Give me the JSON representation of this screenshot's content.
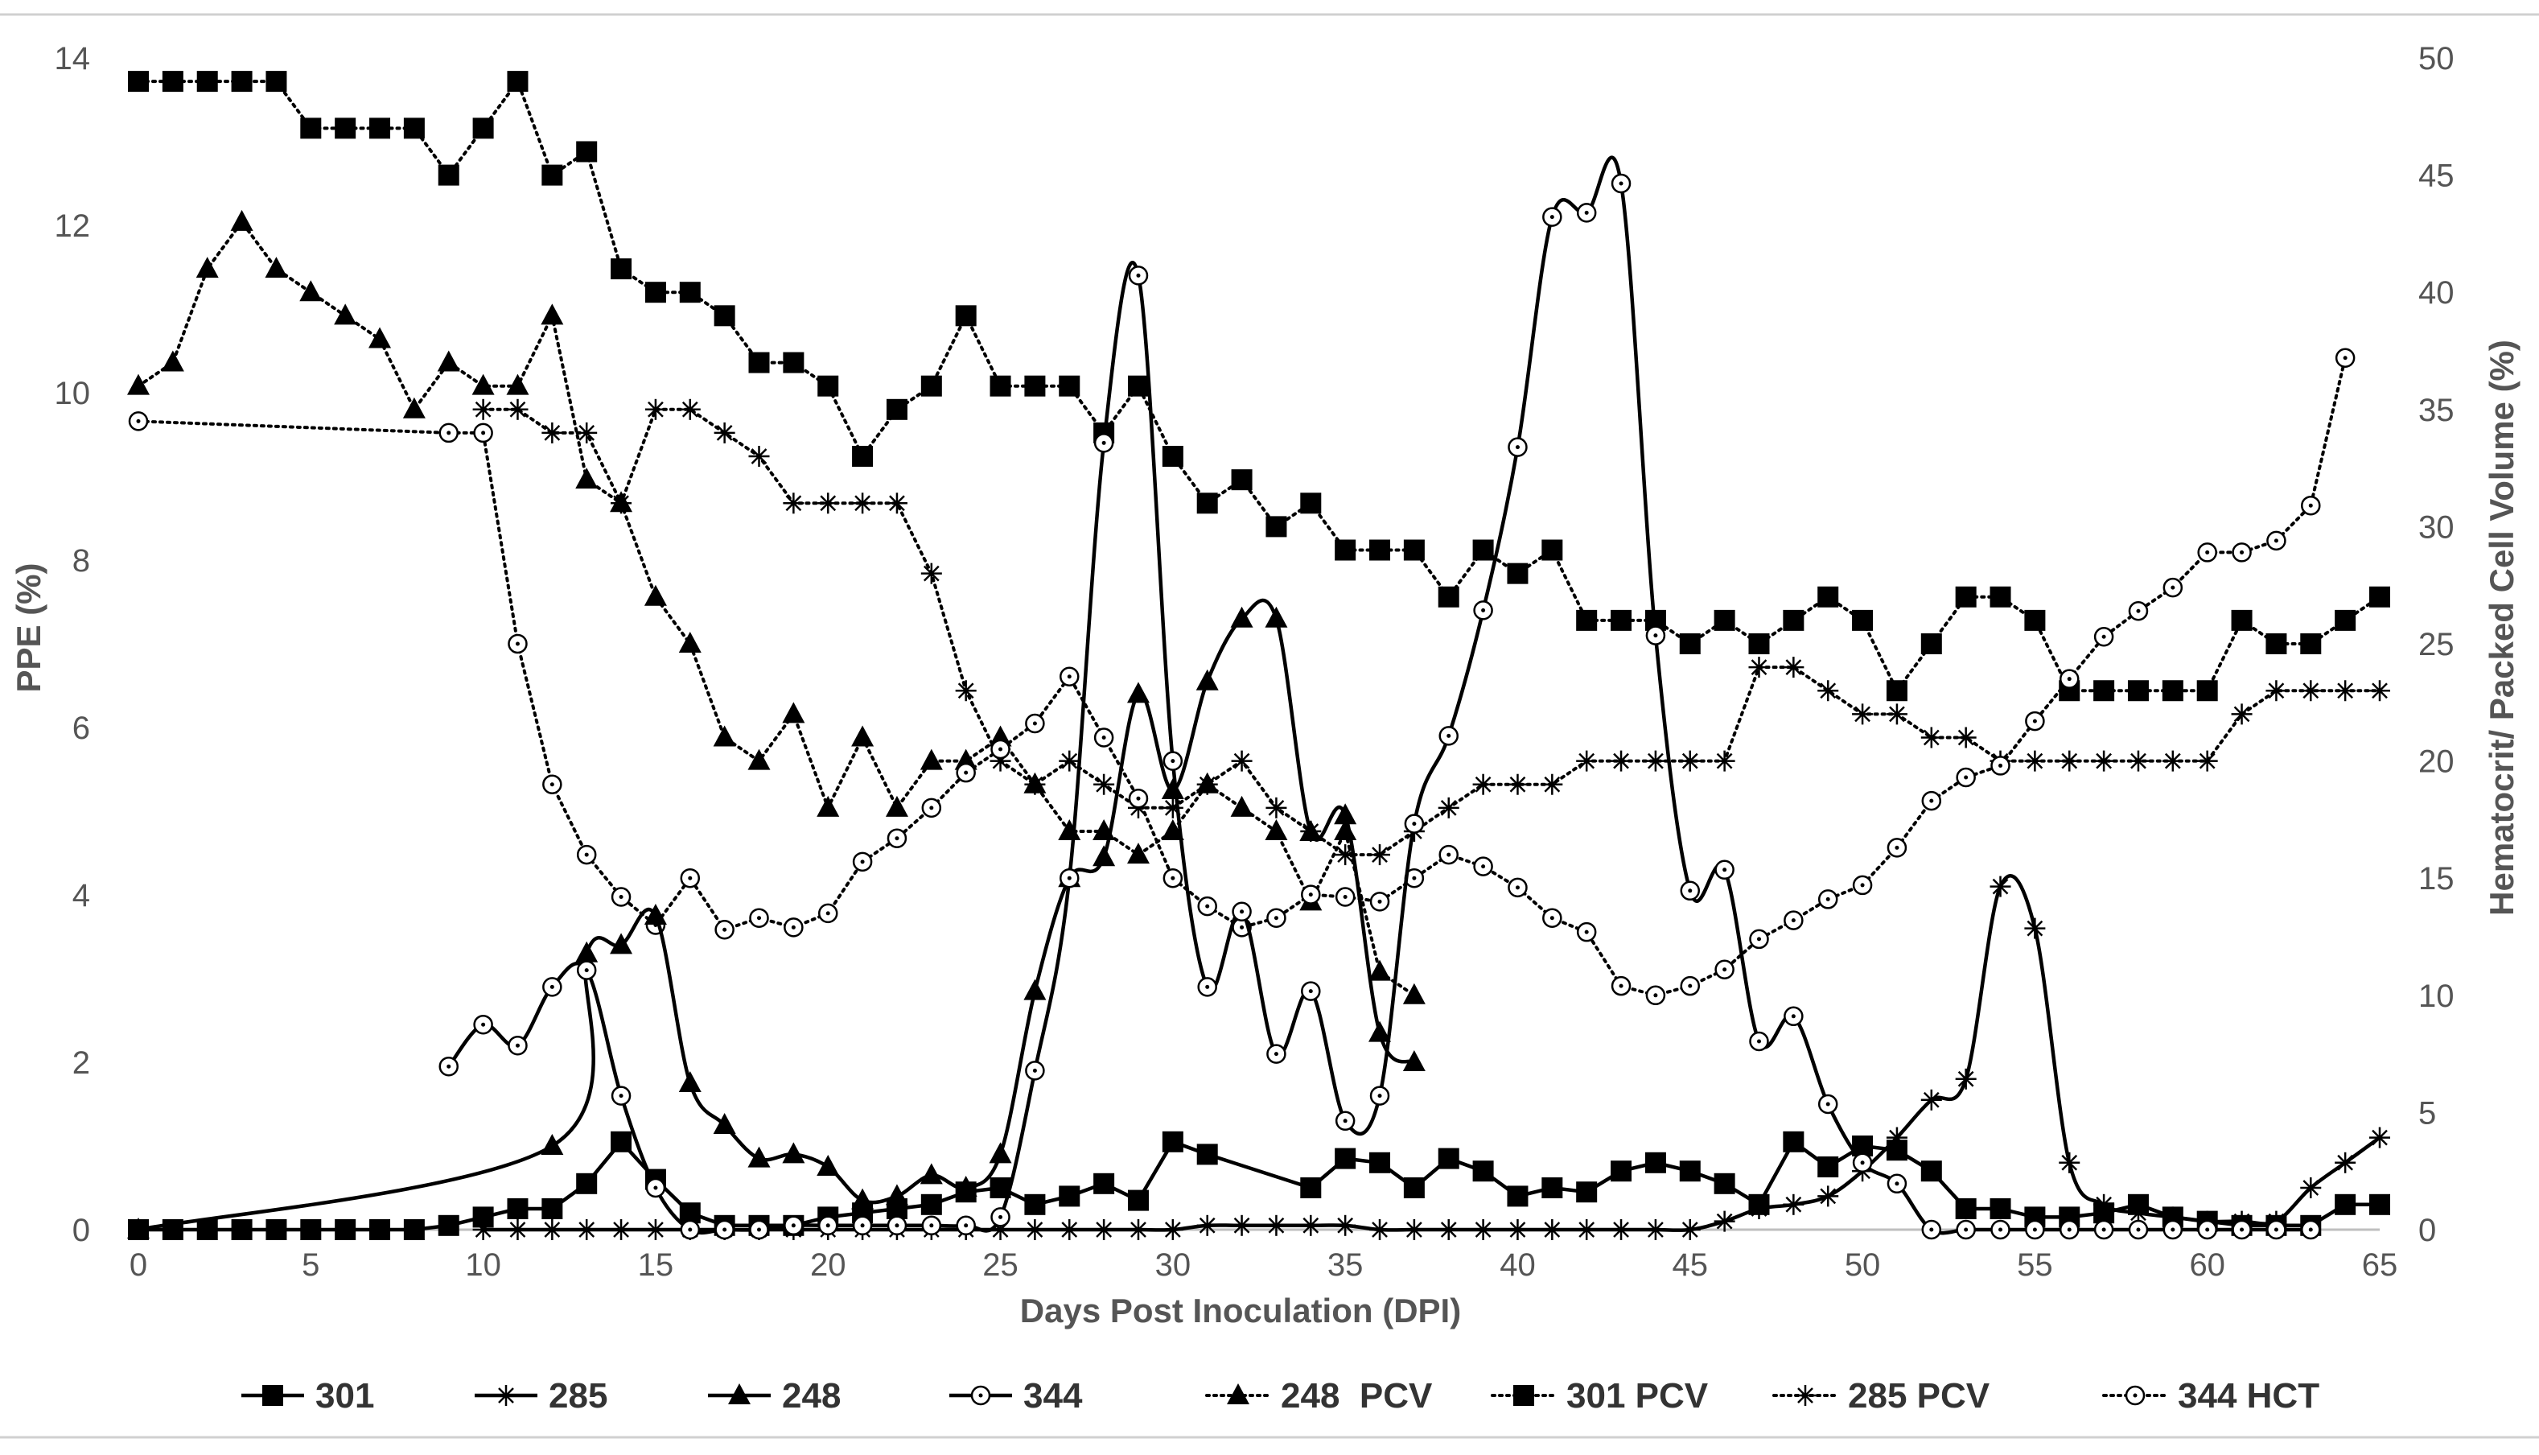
{
  "chart_data": {
    "type": "line",
    "title": "",
    "xlabel": "Days Post Inoculation  (DPI)",
    "ylabel_left": "PPE (%)",
    "ylabel_right": "Hematocrit/ Packed Cell Volume (%)",
    "xlim": [
      0,
      65
    ],
    "ylim_left": [
      0,
      14
    ],
    "ylim_right": [
      0,
      50
    ],
    "x_ticks": [
      "0",
      "5",
      "10",
      "15",
      "20",
      "25",
      "30",
      "35",
      "40",
      "45",
      "50",
      "55",
      "60",
      "65"
    ],
    "y_left_ticks": [
      "0",
      "2",
      "4",
      "6",
      "8",
      "10",
      "12",
      "14"
    ],
    "y_right_ticks": [
      "0",
      "5",
      "10",
      "15",
      "20",
      "25",
      "30",
      "35",
      "40",
      "45",
      "50"
    ],
    "legend_position": "bottom",
    "series": [
      {
        "name": "301",
        "axis": "left",
        "line": "solid",
        "marker": "square",
        "smooth": false,
        "x": [
          0,
          1,
          2,
          3,
          4,
          5,
          6,
          7,
          8,
          9,
          10,
          11,
          12,
          13,
          14,
          15,
          16,
          17,
          18,
          19,
          20,
          21,
          22,
          23,
          24,
          25,
          26,
          27,
          28,
          29,
          30,
          31,
          34,
          35,
          36,
          37,
          38,
          39,
          40,
          41,
          42,
          43,
          44,
          45,
          46,
          47,
          48,
          49,
          50,
          51,
          52,
          53,
          54,
          55,
          56,
          57,
          58,
          59,
          60,
          61,
          62,
          63,
          64,
          65
        ],
        "y": [
          0,
          0,
          0,
          0,
          0,
          0,
          0,
          0,
          0,
          0.05,
          0.15,
          0.25,
          0.25,
          0.55,
          1.05,
          0.6,
          0.2,
          0.05,
          0.05,
          0.05,
          0.15,
          0.2,
          0.25,
          0.3,
          0.45,
          0.5,
          0.3,
          0.4,
          0.55,
          0.35,
          1.05,
          0.9,
          0.5,
          0.85,
          0.8,
          0.5,
          0.85,
          0.7,
          0.4,
          0.5,
          0.45,
          0.7,
          0.8,
          0.7,
          0.55,
          0.3,
          1.05,
          0.75,
          1.0,
          0.95,
          0.7,
          0.25,
          0.25,
          0.15,
          0.15,
          0.2,
          0.3,
          0.15,
          0.1,
          0.05,
          0.05,
          0.05,
          0.3,
          0.3
        ]
      },
      {
        "name": "285",
        "axis": "left",
        "line": "solid",
        "marker": "asterisk",
        "smooth": true,
        "x": [
          10,
          11,
          12,
          13,
          14,
          15,
          16,
          17,
          18,
          19,
          20,
          21,
          22,
          23,
          24,
          25,
          26,
          27,
          28,
          29,
          30,
          31,
          32,
          33,
          34,
          35,
          36,
          37,
          38,
          39,
          40,
          41,
          42,
          43,
          44,
          45,
          46,
          47,
          48,
          49,
          50,
          51,
          52,
          53,
          54,
          55,
          56,
          57,
          58,
          59,
          60,
          61,
          62,
          63,
          64,
          65
        ],
        "y": [
          0,
          0,
          0,
          0,
          0,
          0,
          0,
          0,
          0,
          0,
          0,
          0,
          0,
          0,
          0,
          0,
          0,
          0,
          0,
          0,
          0,
          0.05,
          0.05,
          0.05,
          0.05,
          0.05,
          0,
          0,
          0,
          0,
          0,
          0,
          0,
          0,
          0,
          0,
          0.1,
          0.25,
          0.3,
          0.4,
          0.7,
          1.1,
          1.55,
          1.8,
          4.1,
          3.6,
          0.8,
          0.3,
          0.2,
          0.15,
          0.1,
          0.1,
          0.1,
          0.5,
          0.8,
          1.1
        ]
      },
      {
        "name": "248",
        "axis": "left",
        "line": "solid",
        "marker": "triangle",
        "smooth": true,
        "x": [
          0,
          12,
          13,
          14,
          15,
          16,
          17,
          18,
          19,
          20,
          21,
          22,
          23,
          24,
          25,
          26,
          27,
          28,
          29,
          30,
          31,
          32,
          33,
          34,
          35,
          36,
          37
        ],
        "y": [
          0,
          1.0,
          3.3,
          3.4,
          3.75,
          1.75,
          1.25,
          0.85,
          0.9,
          0.75,
          0.35,
          0.4,
          0.65,
          0.5,
          0.9,
          2.85,
          4.2,
          4.45,
          6.4,
          5.25,
          6.55,
          7.3,
          7.3,
          4.75,
          4.95,
          2.35,
          2.0
        ]
      },
      {
        "name": "344",
        "axis": "left",
        "line": "solid",
        "marker": "circle",
        "smooth": true,
        "x": [
          9,
          10,
          11,
          12,
          13,
          14,
          15,
          16,
          17,
          18,
          19,
          20,
          21,
          22,
          23,
          24,
          25,
          26,
          27,
          28,
          29,
          30,
          31,
          32,
          33,
          34,
          35,
          36,
          37,
          38,
          39,
          40,
          41,
          42,
          43,
          44,
          45,
          46,
          47,
          48,
          49,
          50,
          51,
          52,
          53,
          54,
          55,
          56,
          57,
          58,
          59,
          60,
          61,
          62,
          63
        ],
        "y": [
          1.95,
          2.45,
          2.2,
          2.9,
          3.1,
          1.6,
          0.5,
          0,
          0,
          0,
          0.05,
          0.05,
          0.05,
          0.05,
          0.05,
          0.05,
          0.15,
          1.9,
          4.2,
          9.4,
          11.4,
          5.6,
          2.9,
          3.8,
          2.1,
          2.85,
          1.3,
          1.6,
          4.85,
          5.9,
          7.4,
          9.35,
          12.1,
          12.15,
          12.5,
          7.1,
          4.05,
          4.3,
          2.25,
          2.55,
          1.5,
          0.8,
          0.55,
          0,
          0,
          0,
          0,
          0,
          0,
          0,
          0,
          0,
          0,
          0,
          0
        ]
      },
      {
        "name": "248  PCV",
        "axis": "right",
        "line": "dotted",
        "marker": "triangle",
        "smooth": false,
        "x": [
          0,
          1,
          2,
          3,
          4,
          5,
          6,
          7,
          8,
          9,
          10,
          11,
          12,
          13,
          14,
          15,
          16,
          17,
          18,
          19,
          20,
          21,
          22,
          23,
          24,
          25,
          26,
          27,
          28,
          29,
          30,
          31,
          32,
          33,
          34,
          35,
          36,
          37
        ],
        "y": [
          36,
          37,
          41,
          43,
          41,
          40,
          39,
          38,
          35,
          37,
          36,
          36,
          39,
          32,
          31,
          27,
          25,
          21,
          20,
          22,
          18,
          21,
          18,
          20,
          20,
          21,
          19,
          17,
          17,
          16,
          17,
          19,
          18,
          17,
          14,
          17,
          11,
          10
        ]
      },
      {
        "name": "301 PCV",
        "axis": "right",
        "line": "dotted",
        "marker": "square",
        "smooth": false,
        "x": [
          0,
          1,
          2,
          3,
          4,
          5,
          6,
          7,
          8,
          9,
          10,
          11,
          12,
          13,
          14,
          15,
          16,
          17,
          18,
          19,
          20,
          21,
          22,
          23,
          24,
          25,
          26,
          27,
          28,
          29,
          30,
          31,
          32,
          33,
          34,
          35,
          36,
          37,
          38,
          39,
          40,
          41,
          42,
          43,
          44,
          45,
          46,
          47,
          48,
          49,
          50,
          51,
          52,
          53,
          54,
          55,
          56,
          57,
          58,
          59,
          60,
          61,
          62,
          63,
          64,
          65
        ],
        "y": [
          49,
          49,
          49,
          49,
          49,
          47,
          47,
          47,
          47,
          45,
          47,
          49,
          45,
          46,
          41,
          40,
          40,
          39,
          37,
          37,
          36,
          33,
          35,
          36,
          39,
          36,
          36,
          36,
          34,
          36,
          33,
          31,
          32,
          30,
          31,
          29,
          29,
          29,
          27,
          29,
          28,
          29,
          26,
          26,
          26,
          25,
          26,
          25,
          26,
          27,
          26,
          23,
          25,
          27,
          27,
          26,
          23,
          23,
          23,
          23,
          23,
          26,
          25,
          25,
          26,
          27
        ]
      },
      {
        "name": "285 PCV",
        "axis": "right",
        "line": "dotted",
        "marker": "asterisk",
        "smooth": false,
        "x": [
          10,
          11,
          12,
          13,
          14,
          15,
          16,
          17,
          18,
          19,
          20,
          21,
          22,
          23,
          24,
          25,
          26,
          27,
          28,
          29,
          30,
          31,
          32,
          33,
          34,
          35,
          36,
          37,
          38,
          39,
          40,
          41,
          42,
          43,
          44,
          45,
          46,
          47,
          48,
          49,
          50,
          51,
          52,
          53,
          54,
          55,
          56,
          57,
          58,
          59,
          60,
          61,
          62,
          63,
          64,
          65
        ],
        "y": [
          35,
          35,
          34,
          34,
          31,
          35,
          35,
          34,
          33,
          31,
          31,
          31,
          31,
          28,
          23,
          20,
          19,
          20,
          19,
          18,
          18,
          19,
          20,
          18,
          17,
          16,
          16,
          17,
          18,
          19,
          19,
          19,
          20,
          20,
          20,
          20,
          20,
          24,
          24,
          23,
          22,
          22,
          21,
          21,
          20,
          20,
          20,
          20,
          20,
          20,
          20,
          22,
          23,
          23,
          23,
          23
        ]
      },
      {
        "name": "344 HCT",
        "axis": "right",
        "line": "dotted",
        "marker": "circle",
        "smooth": false,
        "x": [
          0,
          9,
          10,
          11,
          12,
          13,
          14,
          15,
          16,
          17,
          18,
          19,
          20,
          21,
          22,
          23,
          24,
          25,
          26,
          27,
          28,
          29,
          30,
          31,
          32,
          33,
          34,
          35,
          36,
          37,
          38,
          39,
          40,
          41,
          42,
          43,
          44,
          45,
          46,
          47,
          48,
          49,
          50,
          51,
          52,
          53,
          54,
          55,
          56,
          57,
          58,
          59,
          60,
          61,
          62,
          63,
          64
        ],
        "y": [
          34.5,
          34,
          34,
          25,
          19,
          16,
          14.2,
          13,
          15,
          12.8,
          13.3,
          12.9,
          13.5,
          15.7,
          16.7,
          18,
          19.5,
          20.5,
          21.6,
          23.6,
          21,
          18.4,
          15,
          13.8,
          12.9,
          13.3,
          14.3,
          14.2,
          14,
          15,
          16,
          15.5,
          14.6,
          13.3,
          12.7,
          10.4,
          10,
          10.4,
          11.1,
          12.4,
          13.2,
          14.1,
          14.7,
          16.3,
          18.3,
          19.3,
          19.8,
          21.7,
          23.5,
          25.3,
          26.4,
          27.4,
          28.9,
          28.9,
          29.4,
          30.9,
          37.2
        ]
      }
    ]
  }
}
